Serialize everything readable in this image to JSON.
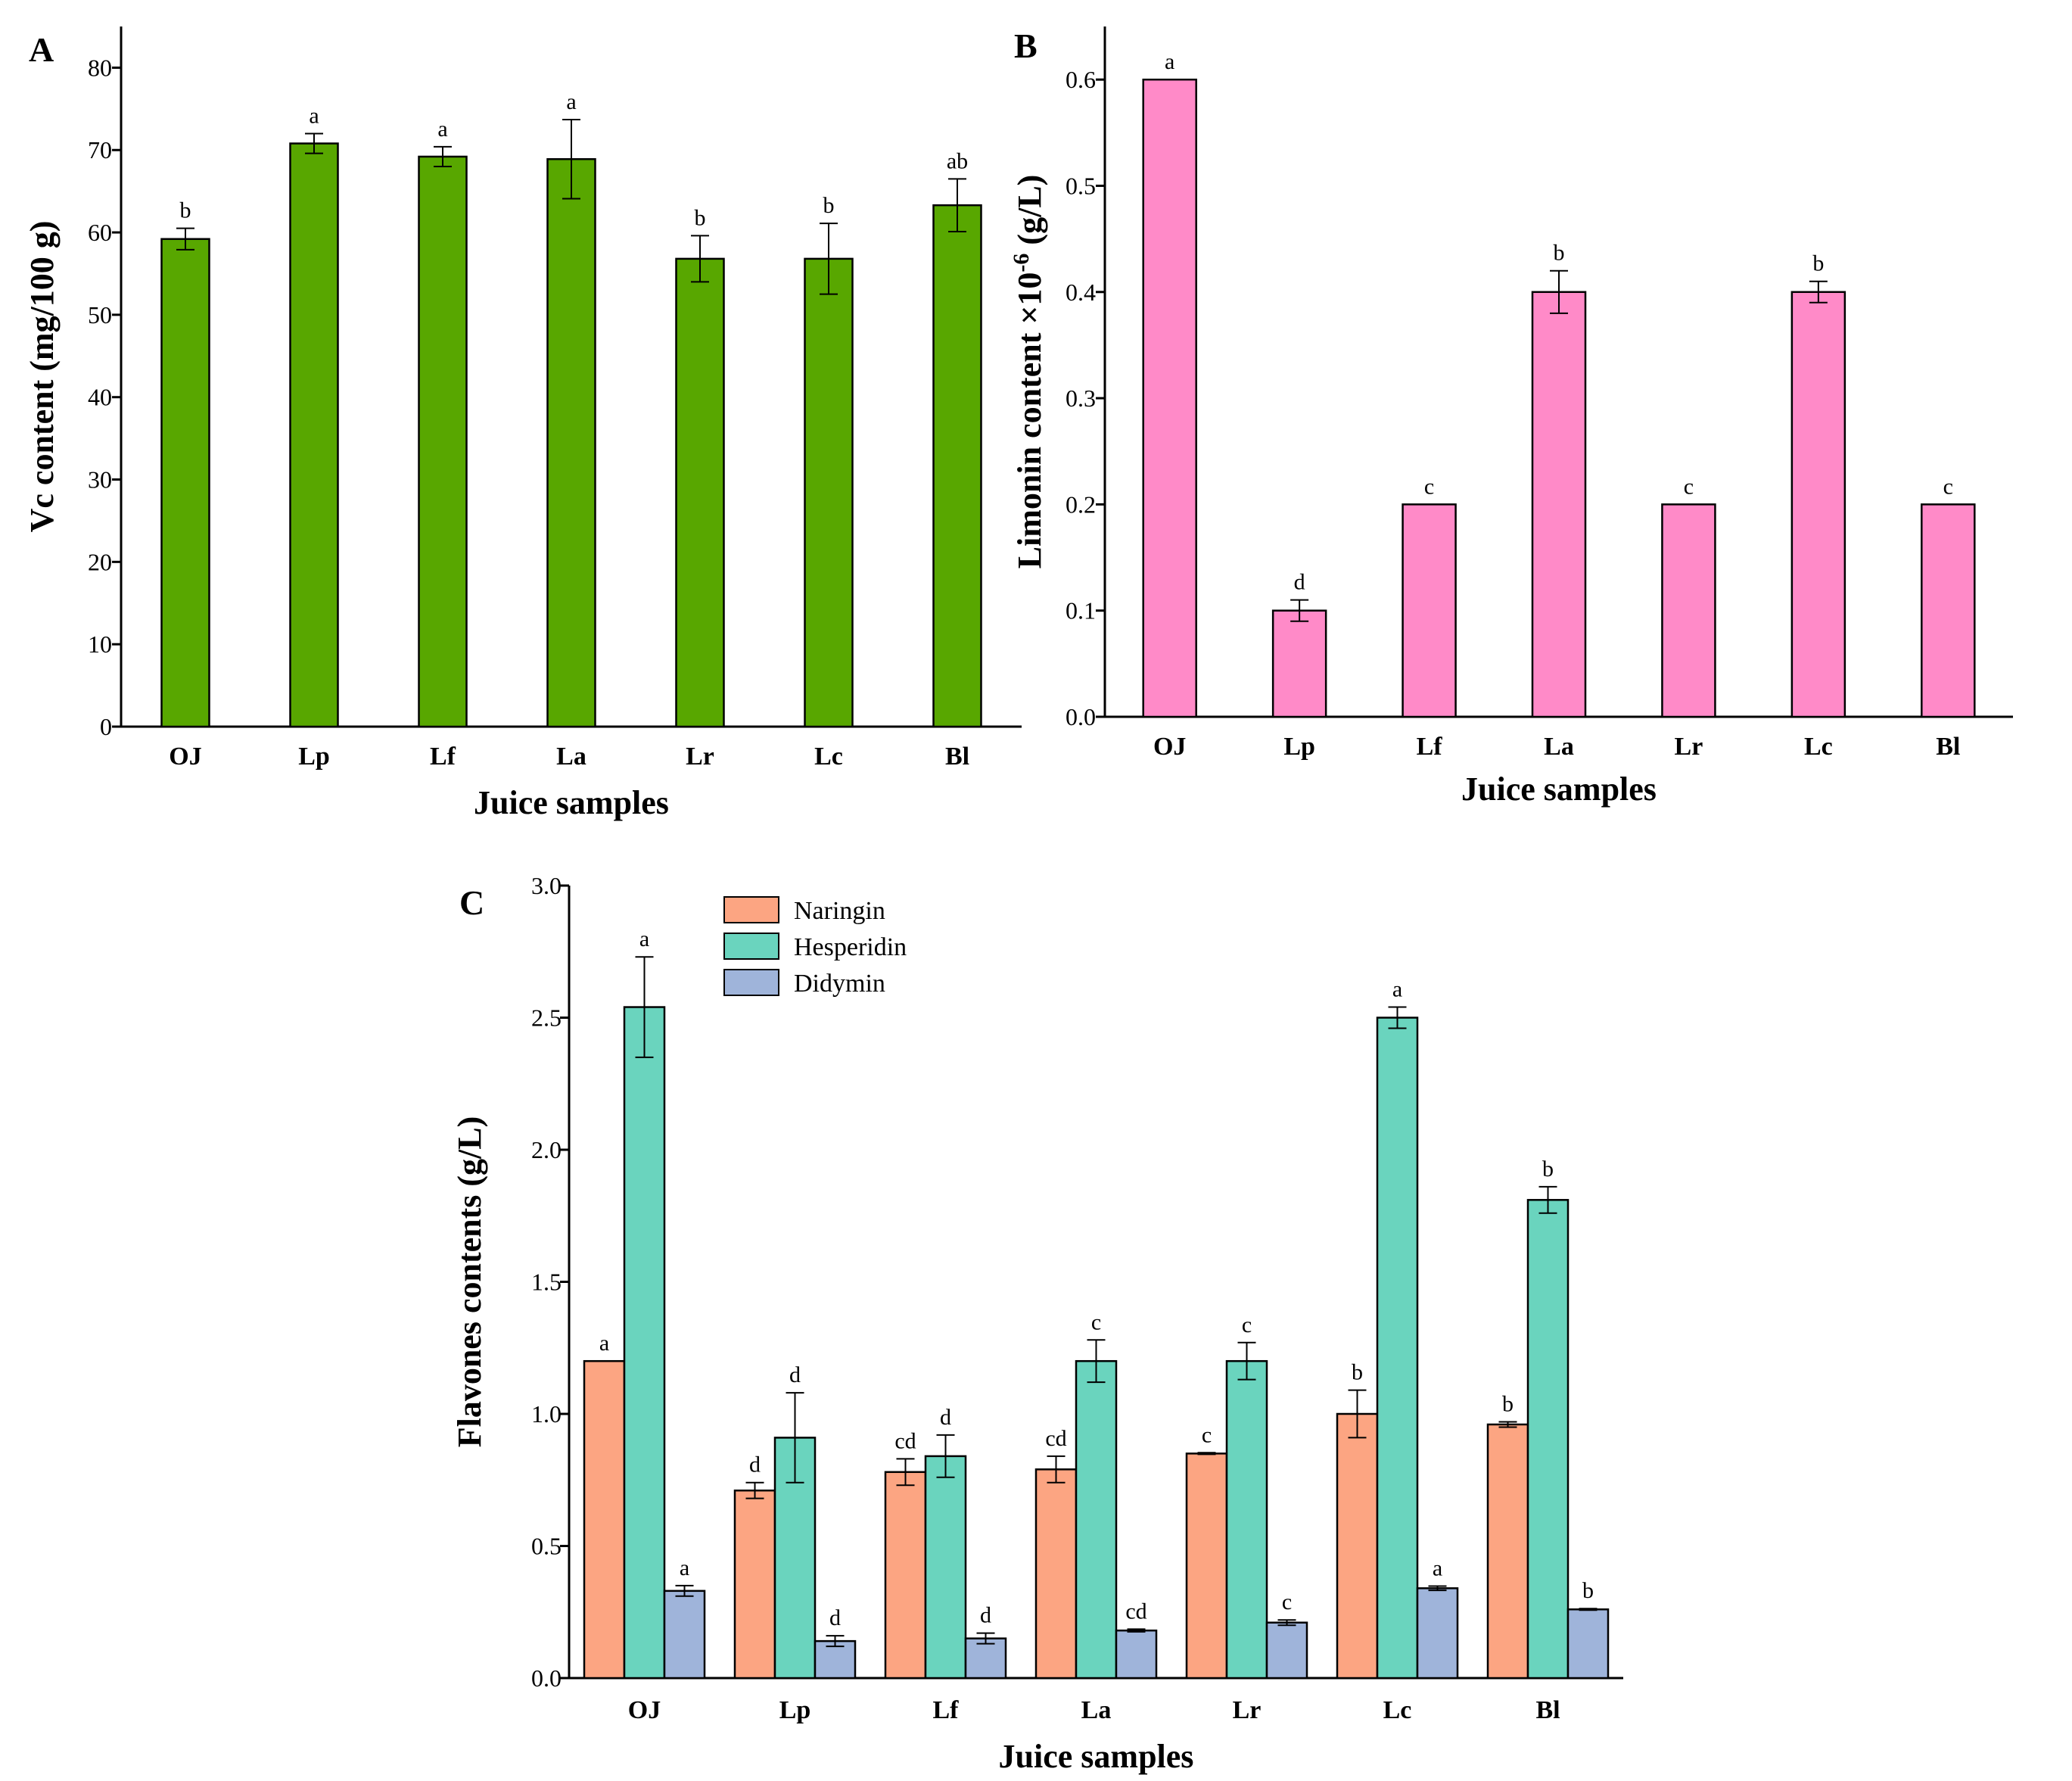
{
  "colors": {
    "vc_bar": "#58A700",
    "limonin_bar": "#FF8AC8",
    "naringin": "#FCA582",
    "hesperidin": "#6AD4BE",
    "didymin": "#9FB4DA",
    "axis": "#000000"
  },
  "chart_data": [
    {
      "panel": "A",
      "type": "bar",
      "categories": [
        "OJ",
        "Lp",
        "Lf",
        "La",
        "Lr",
        "Lc",
        "Bl"
      ],
      "values": [
        59.2,
        70.8,
        69.2,
        68.9,
        56.8,
        56.8,
        63.3
      ],
      "errors": [
        1.3,
        1.2,
        1.2,
        4.8,
        2.8,
        4.3,
        3.2
      ],
      "significance": [
        "b",
        "a",
        "a",
        "a",
        "b",
        "b",
        "ab"
      ],
      "xlabel": "Juice samples",
      "ylabel": "Vc content (mg/100 g)",
      "ylim": [
        0,
        85
      ],
      "yticks": [
        0,
        10,
        20,
        30,
        40,
        50,
        60,
        70,
        80
      ],
      "grid": false,
      "color": "#58A700"
    },
    {
      "panel": "B",
      "type": "bar",
      "categories": [
        "OJ",
        "Lp",
        "Lf",
        "La",
        "Lr",
        "Lc",
        "Bl"
      ],
      "values": [
        0.6,
        0.1,
        0.2,
        0.4,
        0.2,
        0.4,
        0.2
      ],
      "errors": [
        0,
        0.01,
        0,
        0.02,
        0,
        0.01,
        0
      ],
      "significance": [
        "a",
        "d",
        "c",
        "b",
        "c",
        "b",
        "c"
      ],
      "xlabel": "Juice samples",
      "ylabel": "Limonin content ×10",
      "ylabel_exp": "-6",
      "ylabel_unit": " (g/L)",
      "ylim": [
        0,
        0.65
      ],
      "yticks": [
        0.0,
        0.1,
        0.2,
        0.3,
        0.4,
        0.5,
        0.6
      ],
      "grid": false,
      "color": "#FF8AC8"
    },
    {
      "panel": "C",
      "type": "bar",
      "categories": [
        "OJ",
        "Lp",
        "Lf",
        "La",
        "Lr",
        "Lc",
        "Bl"
      ],
      "series": [
        {
          "name": "Naringin",
          "values": [
            1.2,
            0.71,
            0.78,
            0.79,
            0.85,
            1.0,
            0.96
          ],
          "errors": [
            0,
            0.03,
            0.05,
            0.05,
            0.003,
            0.09,
            0.01
          ],
          "significance": [
            "a",
            "d",
            "cd",
            "cd",
            "c",
            "b",
            "b"
          ],
          "color": "#FCA582"
        },
        {
          "name": "Hesperidin",
          "values": [
            2.54,
            0.91,
            0.84,
            1.2,
            1.2,
            2.5,
            1.81
          ],
          "errors": [
            0.19,
            0.17,
            0.08,
            0.08,
            0.07,
            0.04,
            0.05
          ],
          "significance": [
            "a",
            "d",
            "d",
            "c",
            "c",
            "a",
            "b"
          ],
          "color": "#6AD4BE"
        },
        {
          "name": "Didymin",
          "values": [
            0.33,
            0.14,
            0.15,
            0.18,
            0.21,
            0.34,
            0.26
          ],
          "errors": [
            0.02,
            0.02,
            0.02,
            0.005,
            0.01,
            0.008,
            0.003
          ],
          "significance": [
            "a",
            "d",
            "d",
            "cd",
            "c",
            "a",
            "b"
          ],
          "color": "#9FB4DA"
        }
      ],
      "xlabel": "Juice samples",
      "ylabel": "Flavones contents (g/L)",
      "ylim": [
        0,
        3.0
      ],
      "yticks": [
        0.0,
        0.5,
        1.0,
        1.5,
        2.0,
        2.5,
        3.0
      ],
      "grid": false,
      "legend_placement": "top-left"
    }
  ]
}
